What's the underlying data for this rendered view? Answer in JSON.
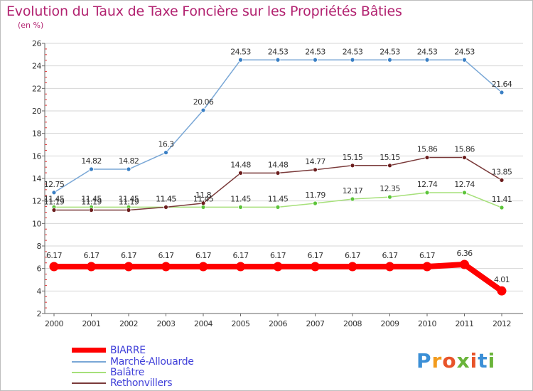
{
  "title": "Evolution du Taux de Taxe Foncière sur les Propriétés Bâties",
  "unit": "(en %)",
  "chart_data": {
    "type": "line",
    "title": "Evolution du Taux de Taxe Foncière sur les Propriétés Bâties",
    "ylabel": "(en %)",
    "xlabel": "",
    "ylim": [
      2,
      26
    ],
    "yticks": [
      2,
      4,
      6,
      8,
      10,
      12,
      14,
      16,
      18,
      20,
      22,
      24,
      26
    ],
    "grid": "horizontal",
    "legend_position": "bottom-left",
    "x": [
      "2000",
      "2001",
      "2002",
      "2003",
      "2004",
      "2005",
      "2006",
      "2007",
      "2008",
      "2009",
      "2010",
      "2011",
      "2012"
    ],
    "series": [
      {
        "name": "BIARRE",
        "color": "#ff0000",
        "point_color": "#ff0000",
        "thick": true,
        "values": [
          6.17,
          6.17,
          6.17,
          6.17,
          6.17,
          6.17,
          6.17,
          6.17,
          6.17,
          6.17,
          6.17,
          6.36,
          4.01
        ],
        "labels": [
          "6.17",
          "6.17",
          "6.17",
          "6.17",
          "6.17",
          "6.17",
          "6.17",
          "6.17",
          "6.17",
          "6.17",
          "6.17",
          "6.36",
          "4.01"
        ]
      },
      {
        "name": "Marché-Allouarde",
        "color": "#79a7d6",
        "point_color": "#3a7fc4",
        "thick": false,
        "values": [
          12.75,
          14.82,
          14.82,
          16.3,
          20.06,
          24.53,
          24.53,
          24.53,
          24.53,
          24.53,
          24.53,
          24.53,
          21.64
        ],
        "labels": [
          "12.75",
          "14.82",
          "14.82",
          "16.3",
          "20.06",
          "24.53",
          "24.53",
          "24.53",
          "24.53",
          "24.53",
          "24.53",
          "24.53",
          "21.64"
        ]
      },
      {
        "name": "Balâtre",
        "color": "#a6e07a",
        "point_color": "#5cc43a",
        "thick": false,
        "values": [
          11.45,
          11.45,
          11.45,
          11.45,
          11.45,
          11.45,
          11.45,
          11.79,
          12.17,
          12.35,
          12.74,
          12.74,
          11.41
        ],
        "labels": [
          "11.45",
          "11.45",
          "11.45",
          "11.45",
          "11.45",
          "11.45",
          "11.45",
          "11.79",
          "12.17",
          "12.35",
          "12.74",
          "12.74",
          "11.41"
        ]
      },
      {
        "name": "Rethonvillers",
        "color": "#7a3a3a",
        "point_color": "#6b1d1d",
        "thick": false,
        "values": [
          11.19,
          11.19,
          11.19,
          11.45,
          11.8,
          14.48,
          14.48,
          14.77,
          15.15,
          15.15,
          15.86,
          15.86,
          13.85
        ],
        "labels": [
          "11.19",
          "11.19",
          "11.19",
          "11.45",
          "11.8",
          "14.48",
          "14.48",
          "14.77",
          "15.15",
          "15.15",
          "15.86",
          "15.86",
          "13.85"
        ]
      }
    ]
  },
  "logo": {
    "text": "Proxiti",
    "letters": [
      "P",
      "r",
      "o",
      "x",
      "i",
      "t",
      "i"
    ],
    "colors": [
      "#3b8fd6",
      "#f29b1d",
      "#e8542a",
      "#6ab43a",
      "#e8542a",
      "#3b8fd6",
      "#6ab43a"
    ]
  }
}
